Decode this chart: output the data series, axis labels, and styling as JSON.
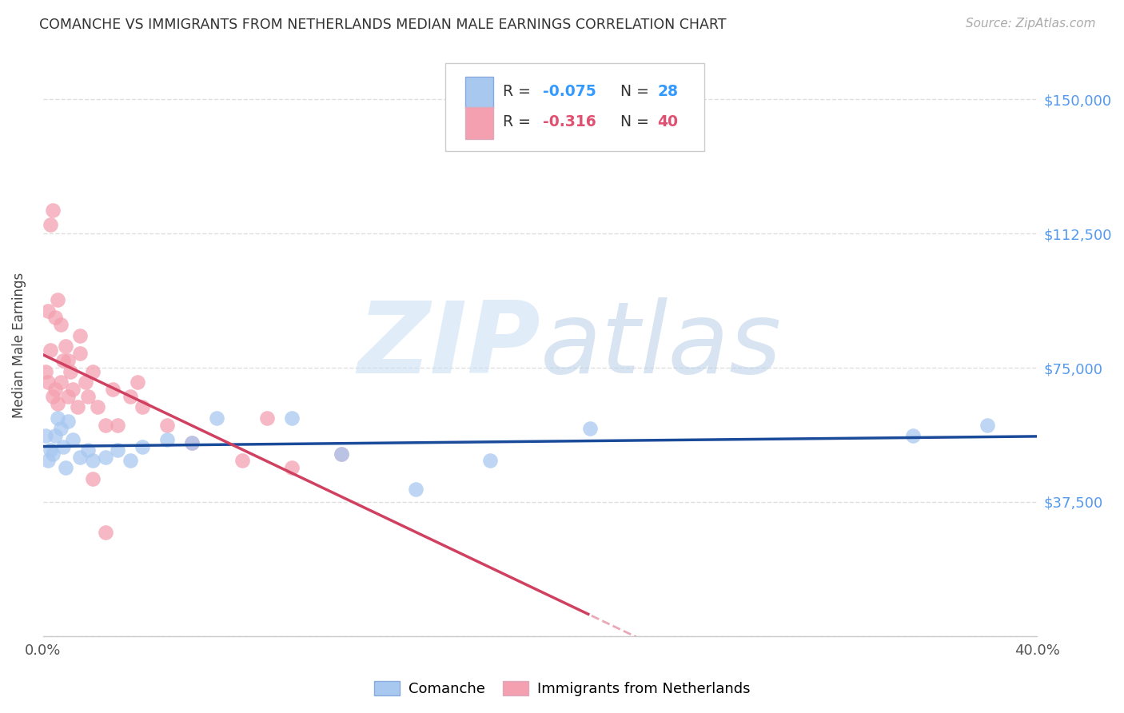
{
  "title": "COMANCHE VS IMMIGRANTS FROM NETHERLANDS MEDIAN MALE EARNINGS CORRELATION CHART",
  "source": "Source: ZipAtlas.com",
  "ylabel": "Median Male Earnings",
  "xlim": [
    0.0,
    0.4
  ],
  "ylim": [
    0,
    162500
  ],
  "yticks": [
    0,
    37500,
    75000,
    112500,
    150000
  ],
  "background_color": "#ffffff",
  "grid_color": "#d8d8d8",
  "watermark_zip": "ZIP",
  "watermark_atlas": "atlas",
  "color_blue": "#a8c8f0",
  "color_pink": "#f4a0b0",
  "line_color_blue": "#1a4a9a",
  "line_color_pink": "#d04060",
  "legend_text_dark": "#333333",
  "legend_text_blue": "#3399ff",
  "legend_text_pink": "#e05070",
  "blue_x": [
    0.001,
    0.002,
    0.003,
    0.004,
    0.005,
    0.006,
    0.007,
    0.008,
    0.009,
    0.01,
    0.012,
    0.015,
    0.018,
    0.02,
    0.025,
    0.03,
    0.035,
    0.04,
    0.05,
    0.06,
    0.07,
    0.1,
    0.12,
    0.15,
    0.18,
    0.22,
    0.35,
    0.38
  ],
  "blue_y": [
    56000,
    49000,
    52000,
    51000,
    56000,
    61000,
    58000,
    53000,
    47000,
    60000,
    55000,
    50000,
    52000,
    49000,
    50000,
    52000,
    49000,
    53000,
    55000,
    54000,
    61000,
    61000,
    51000,
    41000,
    49000,
    58000,
    56000,
    59000
  ],
  "pink_x": [
    0.001,
    0.002,
    0.003,
    0.004,
    0.005,
    0.006,
    0.007,
    0.008,
    0.009,
    0.01,
    0.011,
    0.012,
    0.014,
    0.015,
    0.017,
    0.018,
    0.02,
    0.022,
    0.025,
    0.028,
    0.03,
    0.035,
    0.038,
    0.04,
    0.05,
    0.06,
    0.08,
    0.09,
    0.1,
    0.12,
    0.002,
    0.003,
    0.004,
    0.005,
    0.006,
    0.007,
    0.01,
    0.015,
    0.02,
    0.025
  ],
  "pink_y": [
    74000,
    71000,
    80000,
    67000,
    69000,
    65000,
    71000,
    77000,
    81000,
    67000,
    74000,
    69000,
    64000,
    79000,
    71000,
    67000,
    74000,
    64000,
    59000,
    69000,
    59000,
    67000,
    71000,
    64000,
    59000,
    54000,
    49000,
    61000,
    47000,
    51000,
    91000,
    115000,
    119000,
    89000,
    94000,
    87000,
    77000,
    84000,
    44000,
    29000
  ]
}
